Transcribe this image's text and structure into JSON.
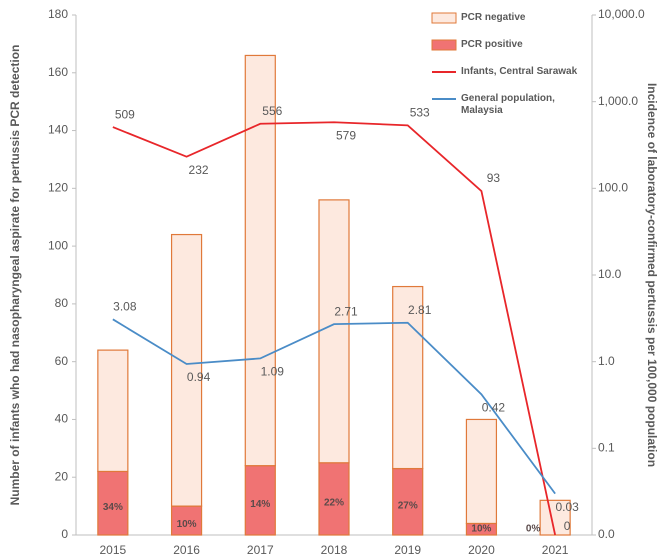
{
  "chart_data": {
    "type": "bar_line",
    "y_label": "Number of infants who had nasopharyngeal aspirate for pertussis PCR detection",
    "y2_label": "Incidence of laboratory-confirmed pertussis per 100,000 population",
    "categories": [
      "2015",
      "2016",
      "2017",
      "2018",
      "2019",
      "2020",
      "2021"
    ],
    "ylim": [
      0,
      180
    ],
    "yticks": [
      0,
      20,
      40,
      60,
      80,
      100,
      120,
      140,
      160,
      180
    ],
    "y2lim": [
      0.01,
      10000
    ],
    "y2log": true,
    "y2ticks": [
      {
        "value": 0.01,
        "label": "0.0"
      },
      {
        "value": 0.1,
        "label": "0.1"
      },
      {
        "value": 1,
        "label": "1.0"
      },
      {
        "value": 10,
        "label": "10.0"
      },
      {
        "value": 100,
        "label": "100.0"
      },
      {
        "value": 1000,
        "label": "1,000.0"
      },
      {
        "value": 10000,
        "label": "10,000.0"
      }
    ],
    "series": [
      {
        "name": "PCR positive",
        "kind": "bar",
        "color": "#f07373",
        "edge": "#e0793a",
        "values": [
          22,
          10,
          24,
          25,
          23,
          4,
          0
        ]
      },
      {
        "name": "PCR negative",
        "kind": "bar",
        "color": "#fde9df",
        "edge": "#e0793a",
        "values": [
          42,
          94,
          142,
          91,
          63,
          36,
          12
        ]
      },
      {
        "name": "Infants, Central Sarawak",
        "kind": "line",
        "axis": "y2",
        "color": "#e8262a",
        "values": [
          509,
          232,
          556,
          579,
          533,
          93,
          0
        ]
      },
      {
        "name": "General population, Malaysia",
        "kind": "line",
        "axis": "y2",
        "color": "#4a8cc7",
        "values": [
          3.08,
          0.94,
          1.09,
          2.71,
          2.81,
          0.42,
          0.03
        ]
      }
    ],
    "annotations": [
      "34%",
      "10%",
      "14%",
      "22%",
      "27%",
      "10%",
      "0%"
    ],
    "legend_order": [
      1,
      0,
      2,
      3
    ]
  }
}
